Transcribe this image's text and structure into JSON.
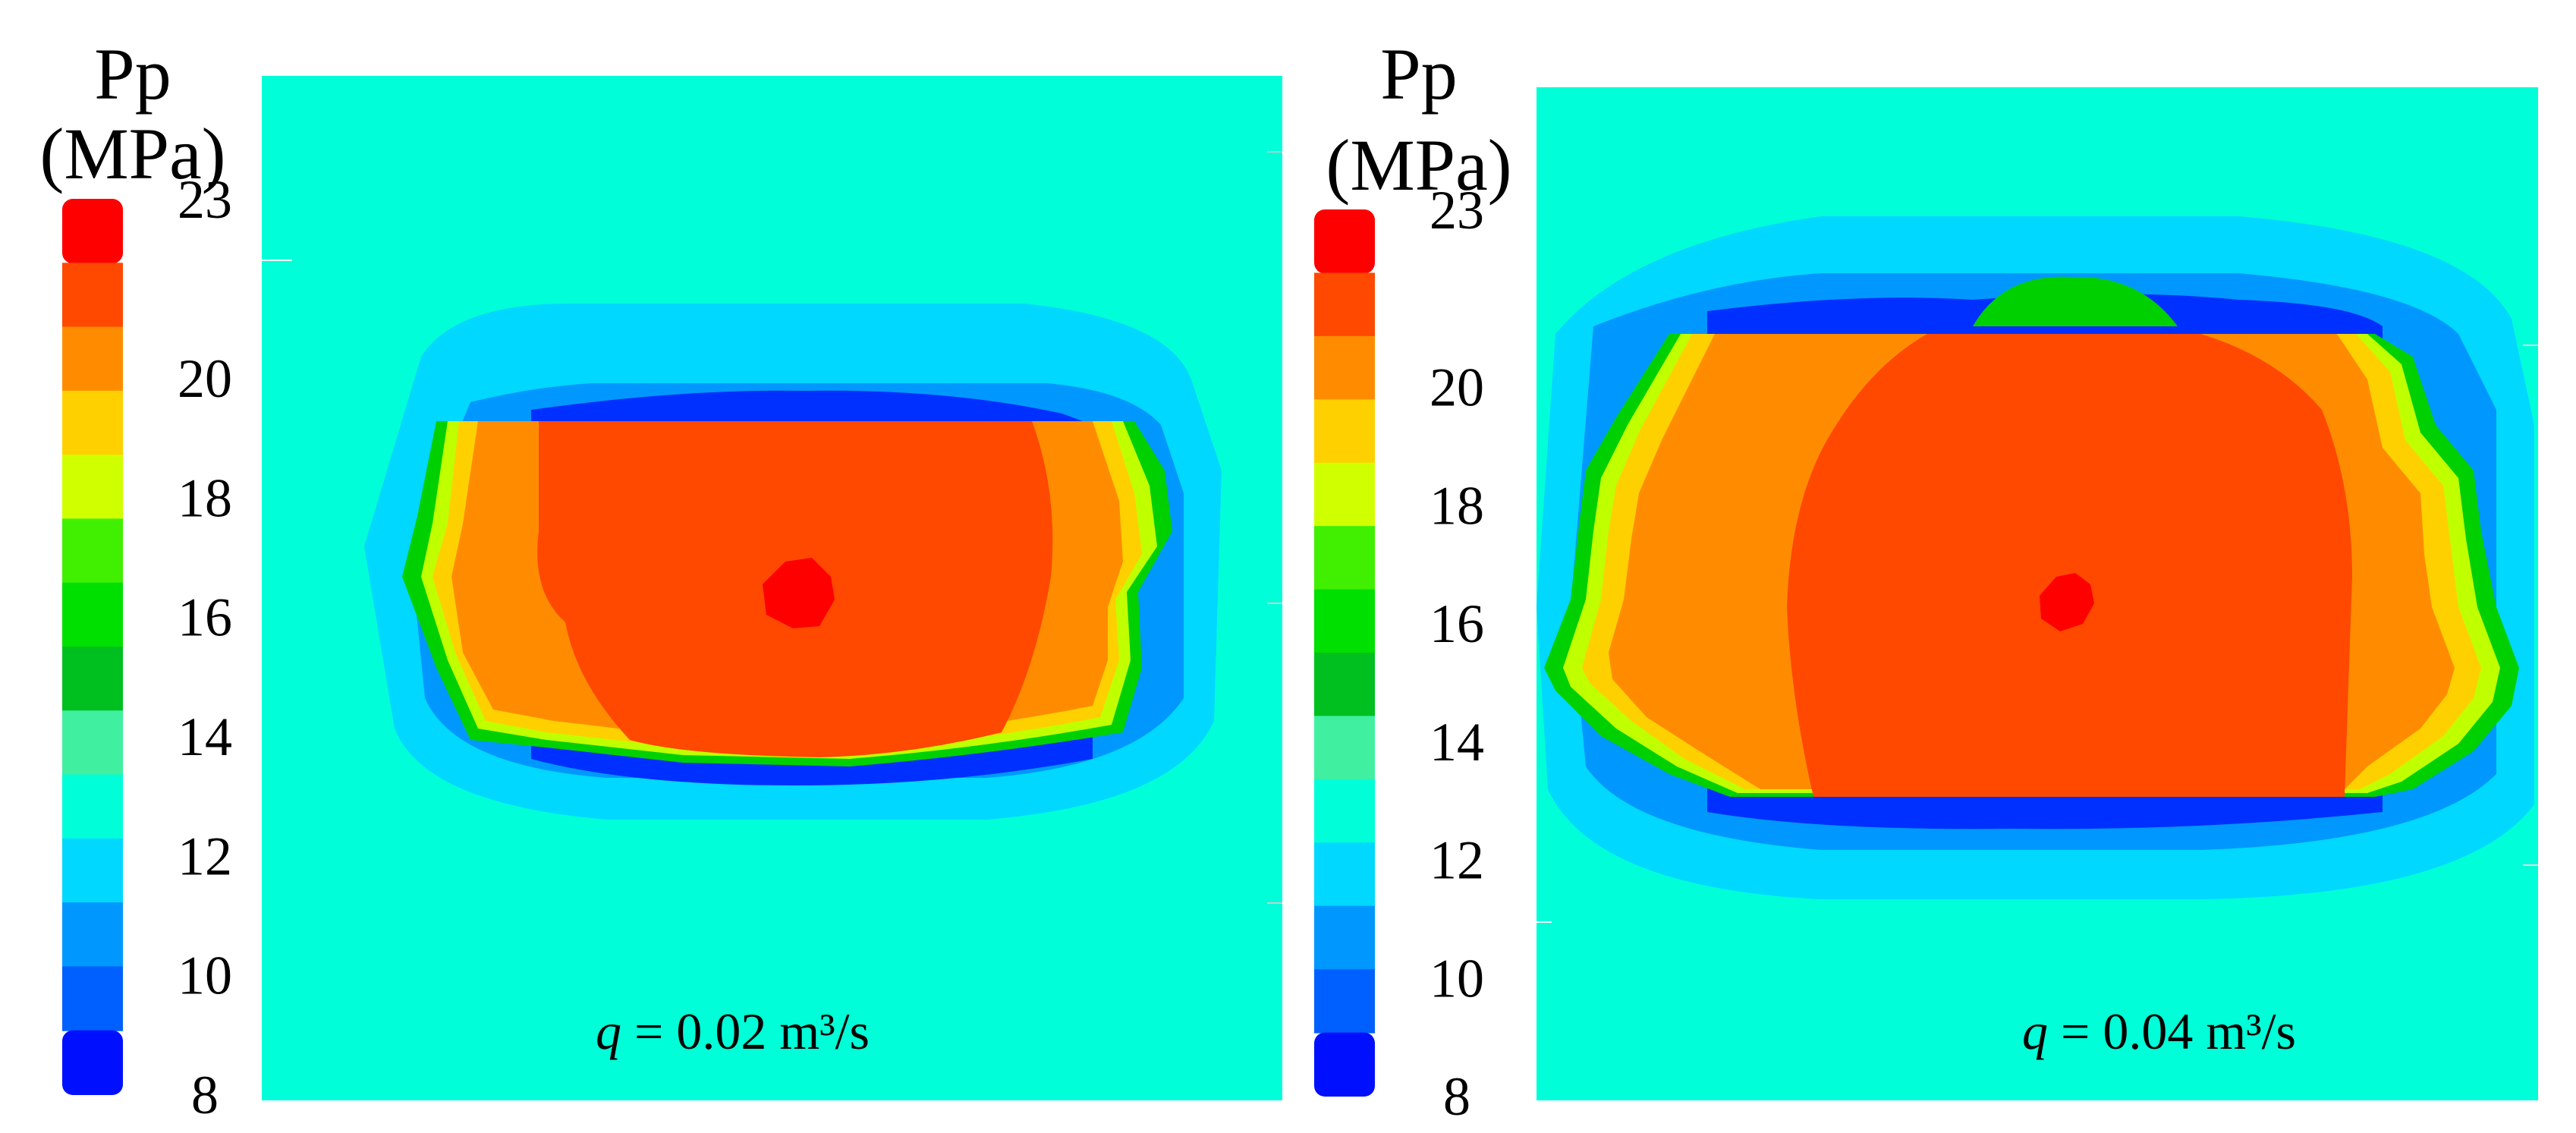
{
  "chart_data": {
    "type": "heatmap",
    "description_axis": "none",
    "colorbar": {
      "title_line1": "Pp",
      "title_line2": "(MPa)",
      "range": [
        8,
        23
      ],
      "tick_labels": [
        "23",
        "20",
        "18",
        "16",
        "14",
        "12",
        "10",
        "8"
      ],
      "tick_values": [
        23,
        20,
        18,
        16,
        14,
        12,
        10,
        8
      ],
      "colors_top_to_bottom": [
        "#ff0000",
        "#ff4800",
        "#ff8c00",
        "#ffd000",
        "#d0ff00",
        "#40f000",
        "#00e000",
        "#00c020",
        "#40f0a0",
        "#00ffd8",
        "#00d8ff",
        "#0098ff",
        "#0060ff",
        "#0010ff"
      ]
    },
    "panels": [
      {
        "id": "q002",
        "caption": {
          "var": "q",
          "rest": " = 0.02 m³/s"
        },
        "background_pressure": 12.8,
        "source_pressure": 23,
        "zone_extent_x": [
          0.15,
          0.89
        ],
        "zone_extent_y": [
          0.29,
          0.72
        ]
      },
      {
        "id": "q004",
        "caption": {
          "var": "q",
          "rest": " = 0.04 m³/s"
        },
        "background_pressure": 12.8,
        "source_pressure": 23,
        "zone_extent_x": [
          0.01,
          0.99
        ],
        "zone_extent_y": [
          0.13,
          0.82
        ]
      }
    ]
  },
  "colors": {
    "background": "#00ffd8",
    "halo_outer": "#00d8ff",
    "halo_mid": "#0098ff",
    "halo_inner": "#0030ff",
    "edge_green": "#00d000",
    "edge_lime": "#c0ff00",
    "edge_yellow": "#ffd000",
    "orange": "#ff8c00",
    "red_orange": "#ff4800",
    "red": "#ff0000"
  }
}
